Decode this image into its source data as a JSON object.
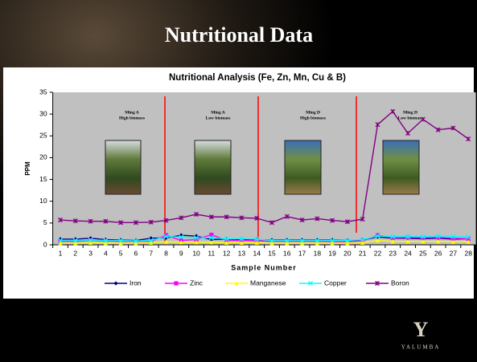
{
  "slide_title": "Nutritional Data",
  "logo": {
    "mark": "Y",
    "name": "YALUMBA"
  },
  "chart_data": {
    "type": "line",
    "title": "Nutritional Analysis (Fe, Zn, Mn, Cu & B)",
    "x_label": "Sample Number",
    "y_label": "PPM",
    "categories": [
      1,
      2,
      3,
      4,
      5,
      6,
      7,
      8,
      9,
      10,
      11,
      12,
      13,
      14,
      15,
      16,
      17,
      18,
      19,
      20,
      21,
      22,
      23,
      24,
      25,
      26,
      27,
      28
    ],
    "ylim": [
      0,
      35
    ],
    "yticks": [
      0,
      5,
      10,
      15,
      20,
      25,
      30,
      35
    ],
    "grid": false,
    "legend": "bottom",
    "annotations": [
      [
        "Ming A",
        "High biomass"
      ],
      [
        "Ming A",
        "Low biomass"
      ],
      [
        "Ming D",
        "High biomass"
      ],
      [
        "Ming D",
        "Low biomass"
      ]
    ],
    "series": [
      {
        "name": "Iron",
        "color": "#000080",
        "marker": "diamond",
        "values": [
          1.3,
          1.3,
          1.5,
          1.2,
          1.1,
          1.0,
          1.5,
          1.6,
          2.2,
          2.0,
          1.2,
          1.3,
          1.2,
          1.2,
          1.1,
          1.1,
          1.1,
          1.1,
          1.1,
          1.0,
          1.1,
          1.8,
          1.5,
          1.5,
          1.4,
          1.5,
          1.3,
          1.4
        ]
      },
      {
        "name": "Zinc",
        "color": "#ff00ff",
        "marker": "square",
        "values": [
          0.8,
          0.8,
          1.0,
          0.9,
          0.8,
          0.8,
          0.8,
          2.2,
          1.0,
          1.2,
          2.3,
          1.0,
          1.0,
          0.9,
          0.8,
          0.8,
          0.8,
          0.8,
          0.7,
          0.7,
          0.9,
          2.2,
          1.6,
          1.7,
          1.6,
          1.7,
          1.5,
          1.4
        ]
      },
      {
        "name": "Manganese",
        "color": "#ffff00",
        "marker": "triangle",
        "values": [
          0.4,
          0.4,
          0.5,
          0.4,
          0.4,
          0.4,
          0.5,
          0.7,
          0.6,
          0.6,
          0.6,
          0.5,
          0.5,
          0.5,
          0.4,
          0.4,
          0.4,
          0.4,
          0.4,
          0.4,
          0.5,
          1.0,
          0.8,
          0.8,
          0.8,
          0.8,
          0.7,
          0.7
        ]
      },
      {
        "name": "Copper",
        "color": "#00ffff",
        "marker": "x",
        "values": [
          1.0,
          1.0,
          1.1,
          1.0,
          1.0,
          0.9,
          1.0,
          1.9,
          1.8,
          1.6,
          1.6,
          1.4,
          1.4,
          1.3,
          1.0,
          1.0,
          1.0,
          1.0,
          1.0,
          1.0,
          1.2,
          2.0,
          1.9,
          1.9,
          1.9,
          2.0,
          1.9,
          1.8
        ]
      },
      {
        "name": "Boron",
        "color": "#800080",
        "marker": "star",
        "values": [
          5.7,
          5.5,
          5.4,
          5.4,
          5.1,
          5.1,
          5.2,
          5.6,
          6.2,
          7.0,
          6.4,
          6.4,
          6.2,
          6.1,
          5.1,
          6.5,
          5.7,
          6.0,
          5.6,
          5.3,
          5.9,
          27.6,
          30.6,
          25.6,
          28.8,
          26.4,
          26.8,
          24.3
        ]
      }
    ]
  }
}
